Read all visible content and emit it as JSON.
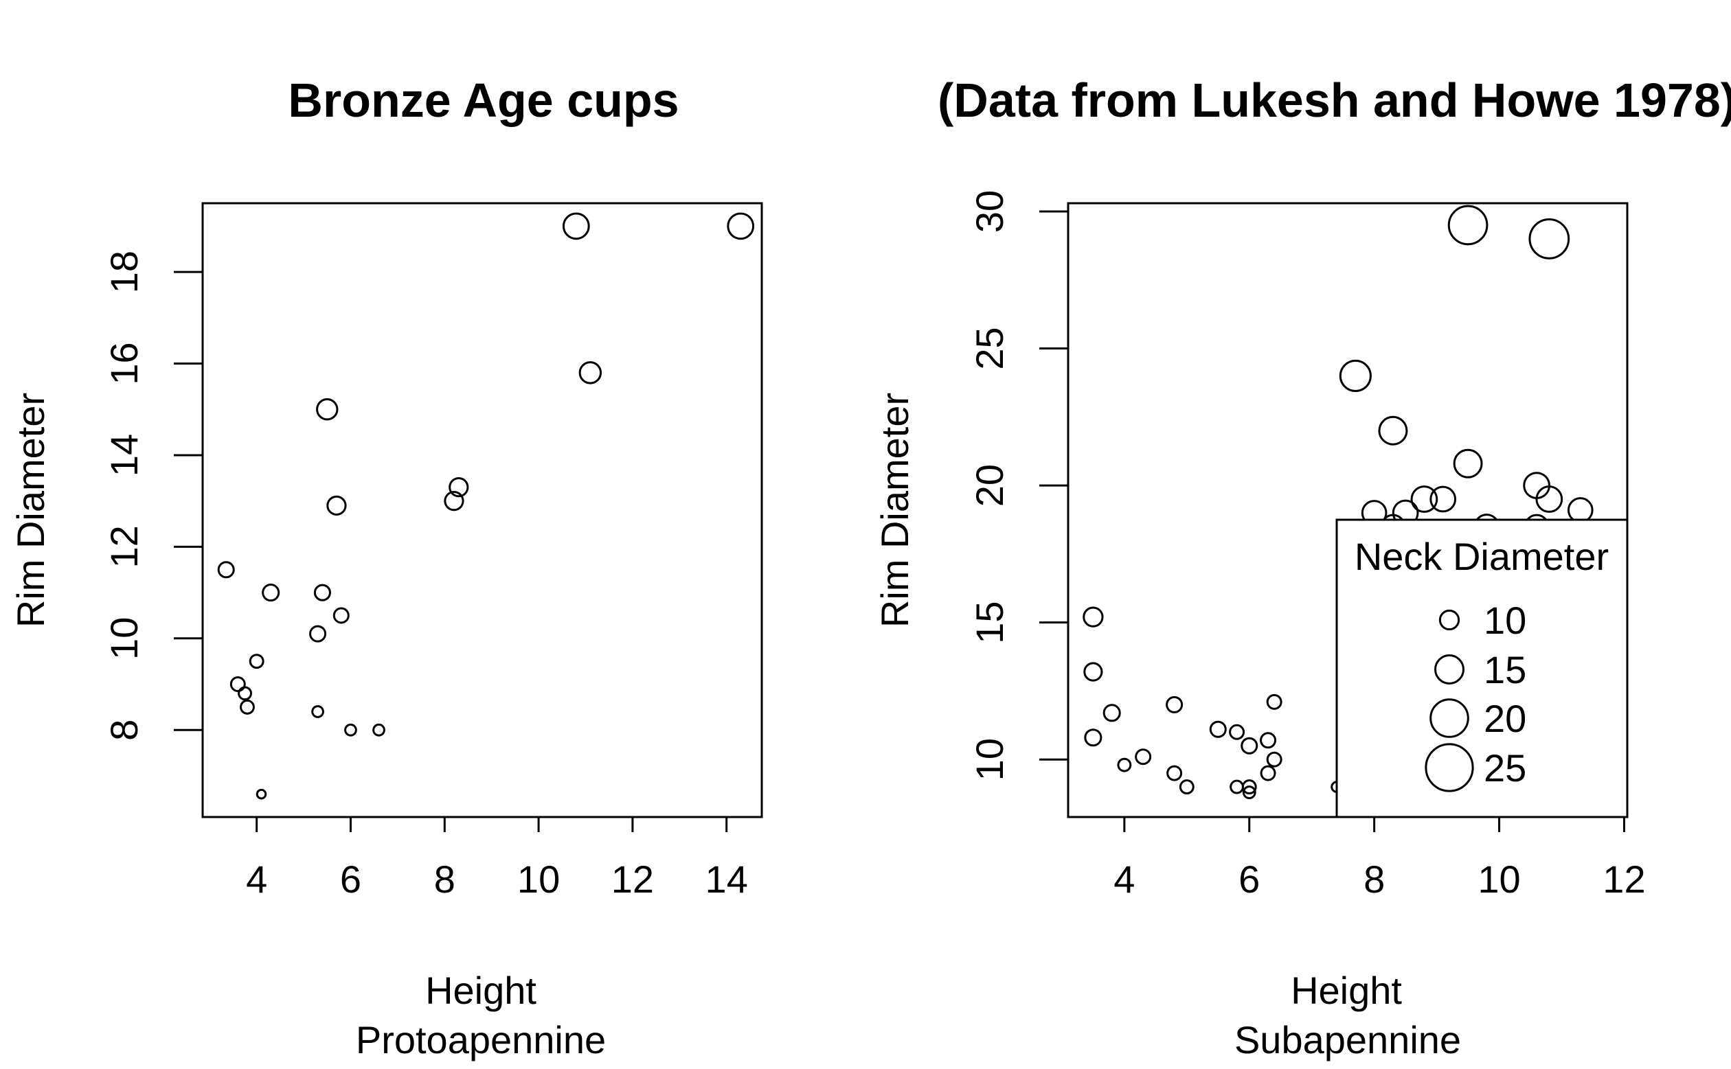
{
  "chart_data": [
    {
      "type": "scatter",
      "title": "Bronze Age cups",
      "xlabel": "Height",
      "xlabel2": "Protoapennine",
      "ylabel": "Rim Diameter",
      "xlim": [
        2.85,
        14.75
      ],
      "ylim": [
        6.1,
        19.5
      ],
      "xticks": [
        4,
        6,
        8,
        10,
        12,
        14
      ],
      "yticks": [
        8,
        10,
        12,
        14,
        16,
        18
      ],
      "size_variable": "Neck Diameter",
      "points": [
        {
          "x": 3.35,
          "y": 11.5,
          "size": 10.5
        },
        {
          "x": 3.6,
          "y": 9.0,
          "size": 9.5
        },
        {
          "x": 3.75,
          "y": 8.8,
          "size": 8.5
        },
        {
          "x": 3.8,
          "y": 8.5,
          "size": 9.0
        },
        {
          "x": 4.0,
          "y": 9.5,
          "size": 9.0
        },
        {
          "x": 4.1,
          "y": 6.6,
          "size": 6.0
        },
        {
          "x": 4.3,
          "y": 11.0,
          "size": 11.0
        },
        {
          "x": 5.3,
          "y": 8.4,
          "size": 7.5
        },
        {
          "x": 5.3,
          "y": 10.1,
          "size": 10.5
        },
        {
          "x": 5.4,
          "y": 11.0,
          "size": 10.5
        },
        {
          "x": 5.5,
          "y": 15.0,
          "size": 14.0
        },
        {
          "x": 5.7,
          "y": 12.9,
          "size": 12.5
        },
        {
          "x": 5.8,
          "y": 10.5,
          "size": 10.0
        },
        {
          "x": 6.0,
          "y": 8.0,
          "size": 7.5
        },
        {
          "x": 6.6,
          "y": 8.0,
          "size": 7.5
        },
        {
          "x": 8.2,
          "y": 13.0,
          "size": 12.5
        },
        {
          "x": 8.3,
          "y": 13.3,
          "size": 12.5
        },
        {
          "x": 10.8,
          "y": 19.0,
          "size": 17.5
        },
        {
          "x": 11.1,
          "y": 15.8,
          "size": 14.5
        },
        {
          "x": 14.3,
          "y": 19.0,
          "size": 17.5
        }
      ]
    },
    {
      "type": "scatter",
      "title": "(Data from Lukesh and Howe 1978)",
      "xlabel": "Height",
      "xlabel2": "Subapennine",
      "ylabel": "Rim Diameter",
      "xlim": [
        3.1,
        12.05
      ],
      "ylim": [
        7.9,
        30.3
      ],
      "xticks": [
        4,
        6,
        8,
        10,
        12
      ],
      "yticks": [
        10,
        15,
        20,
        25,
        30
      ],
      "size_variable": "Neck Diameter",
      "points": [
        {
          "x": 3.5,
          "y": 15.2,
          "size": 13.0
        },
        {
          "x": 3.5,
          "y": 13.2,
          "size": 12.0
        },
        {
          "x": 3.5,
          "y": 10.8,
          "size": 11.0
        },
        {
          "x": 3.8,
          "y": 11.7,
          "size": 11.0
        },
        {
          "x": 4.0,
          "y": 9.8,
          "size": 8.5
        },
        {
          "x": 4.3,
          "y": 10.1,
          "size": 10.0
        },
        {
          "x": 4.8,
          "y": 12.0,
          "size": 10.5
        },
        {
          "x": 4.8,
          "y": 9.5,
          "size": 9.5
        },
        {
          "x": 5.0,
          "y": 9.0,
          "size": 9.0
        },
        {
          "x": 5.5,
          "y": 11.1,
          "size": 10.5
        },
        {
          "x": 5.8,
          "y": 11.0,
          "size": 9.5
        },
        {
          "x": 5.8,
          "y": 9.0,
          "size": 8.5
        },
        {
          "x": 6.0,
          "y": 10.5,
          "size": 10.5
        },
        {
          "x": 6.0,
          "y": 9.0,
          "size": 9.0
        },
        {
          "x": 6.0,
          "y": 8.8,
          "size": 8.0
        },
        {
          "x": 6.3,
          "y": 10.7,
          "size": 10.0
        },
        {
          "x": 6.3,
          "y": 9.5,
          "size": 9.5
        },
        {
          "x": 6.4,
          "y": 12.1,
          "size": 9.5
        },
        {
          "x": 6.4,
          "y": 10.0,
          "size": 9.5
        },
        {
          "x": 7.4,
          "y": 9.0,
          "size": 7.0
        },
        {
          "x": 7.7,
          "y": 24.0,
          "size": 21.0
        },
        {
          "x": 8.0,
          "y": 19.0,
          "size": 16.5
        },
        {
          "x": 8.3,
          "y": 22.0,
          "size": 19.0
        },
        {
          "x": 8.3,
          "y": 18.5,
          "size": 16.0
        },
        {
          "x": 8.5,
          "y": 19.0,
          "size": 17.0
        },
        {
          "x": 8.8,
          "y": 19.5,
          "size": 17.5
        },
        {
          "x": 9.1,
          "y": 19.5,
          "size": 17.0
        },
        {
          "x": 9.5,
          "y": 29.5,
          "size": 26.5
        },
        {
          "x": 9.5,
          "y": 20.8,
          "size": 19.0
        },
        {
          "x": 9.8,
          "y": 18.5,
          "size": 16.5
        },
        {
          "x": 10.6,
          "y": 20.0,
          "size": 17.5
        },
        {
          "x": 10.6,
          "y": 18.5,
          "size": 16.0
        },
        {
          "x": 10.8,
          "y": 29.0,
          "size": 27.0
        },
        {
          "x": 10.8,
          "y": 19.5,
          "size": 17.5
        },
        {
          "x": 11.3,
          "y": 19.1,
          "size": 16.5
        }
      ],
      "legend": {
        "title": "Neck Diameter",
        "position": "bottom-right",
        "entries": [
          {
            "label": "10",
            "size": 10
          },
          {
            "label": "15",
            "size": 15
          },
          {
            "label": "20",
            "size": 20
          },
          {
            "label": "25",
            "size": 25
          }
        ]
      }
    }
  ]
}
